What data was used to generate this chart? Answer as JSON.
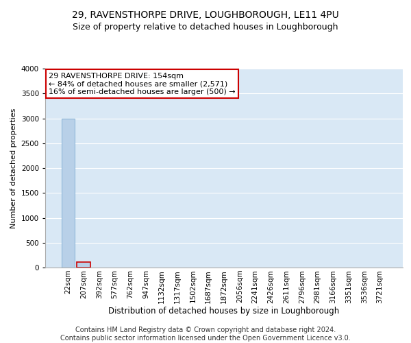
{
  "title": "29, RAVENSTHORPE DRIVE, LOUGHBOROUGH, LE11 4PU",
  "subtitle": "Size of property relative to detached houses in Loughborough",
  "xlabel": "Distribution of detached houses by size in Loughborough",
  "ylabel": "Number of detached properties",
  "footer_line1": "Contains HM Land Registry data © Crown copyright and database right 2024.",
  "footer_line2": "Contains public sector information licensed under the Open Government Licence v3.0.",
  "categories": [
    "22sqm",
    "207sqm",
    "392sqm",
    "577sqm",
    "762sqm",
    "947sqm",
    "1132sqm",
    "1317sqm",
    "1502sqm",
    "1687sqm",
    "1872sqm",
    "2056sqm",
    "2241sqm",
    "2426sqm",
    "2611sqm",
    "2796sqm",
    "2981sqm",
    "3166sqm",
    "3351sqm",
    "3536sqm",
    "3721sqm"
  ],
  "values": [
    3000,
    110,
    0,
    0,
    0,
    0,
    0,
    0,
    0,
    0,
    0,
    0,
    0,
    0,
    0,
    0,
    0,
    0,
    0,
    0,
    0
  ],
  "bar_color": "#b8d0e8",
  "bar_edge_color": "#7aaacf",
  "highlight_bar_index": 1,
  "highlight_bar_edge_color": "#cc0000",
  "plot_bg_color": "#d9e8f5",
  "ylim": [
    0,
    4000
  ],
  "yticks": [
    0,
    500,
    1000,
    1500,
    2000,
    2500,
    3000,
    3500,
    4000
  ],
  "annotation_box_text": "29 RAVENSTHORPE DRIVE: 154sqm\n← 84% of detached houses are smaller (2,571)\n16% of semi-detached houses are larger (500) →",
  "title_fontsize": 10,
  "subtitle_fontsize": 9,
  "annotation_fontsize": 8,
  "tick_fontsize": 7.5,
  "ylabel_fontsize": 8,
  "xlabel_fontsize": 8.5,
  "footer_fontsize": 7
}
